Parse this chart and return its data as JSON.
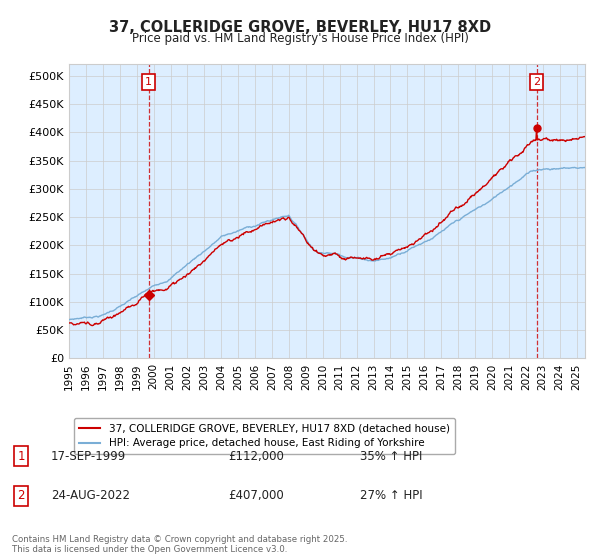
{
  "title": "37, COLLERIDGE GROVE, BEVERLEY, HU17 8XD",
  "subtitle": "Price paid vs. HM Land Registry's House Price Index (HPI)",
  "ylim": [
    0,
    520000
  ],
  "yticks": [
    0,
    50000,
    100000,
    150000,
    200000,
    250000,
    300000,
    350000,
    400000,
    450000,
    500000
  ],
  "xlim_start": 1995.0,
  "xlim_end": 2025.5,
  "xticks": [
    1995,
    1996,
    1997,
    1998,
    1999,
    2000,
    2001,
    2002,
    2003,
    2004,
    2005,
    2006,
    2007,
    2008,
    2009,
    2010,
    2011,
    2012,
    2013,
    2014,
    2015,
    2016,
    2017,
    2018,
    2019,
    2020,
    2021,
    2022,
    2023,
    2024,
    2025
  ],
  "line1_color": "#cc0000",
  "line2_color": "#7aaed6",
  "fill_color": "#ddeeff",
  "sale1_x": 1999.71,
  "sale1_y": 112000,
  "sale2_x": 2022.64,
  "sale2_y": 407000,
  "vline_color": "#cc0000",
  "legend1_label": "37, COLLERIDGE GROVE, BEVERLEY, HU17 8XD (detached house)",
  "legend2_label": "HPI: Average price, detached house, East Riding of Yorkshire",
  "note1_date": "17-SEP-1999",
  "note1_price": "£112,000",
  "note1_hpi": "35% ↑ HPI",
  "note2_date": "24-AUG-2022",
  "note2_price": "£407,000",
  "note2_hpi": "27% ↑ HPI",
  "footer": "Contains HM Land Registry data © Crown copyright and database right 2025.\nThis data is licensed under the Open Government Licence v3.0.",
  "bg_color": "#ffffff",
  "grid_color": "#cccccc"
}
